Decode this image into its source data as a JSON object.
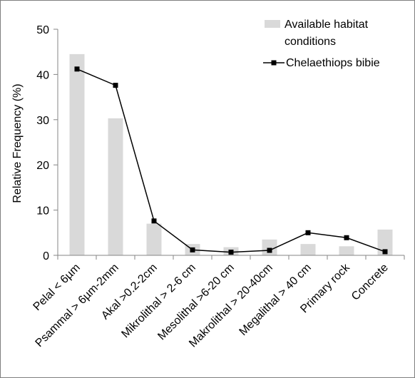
{
  "chart_data": {
    "type": "bar",
    "title": "",
    "xlabel": "",
    "ylabel": "Relative Frequency (%)",
    "ylim": [
      0,
      50
    ],
    "yticks": [
      0,
      10,
      20,
      30,
      40,
      50
    ],
    "grid": false,
    "legend_position": "top-right",
    "categories": [
      "Pelal < 6µm",
      "Psammal > 6µm-2mm",
      "Akal >0.2-2cm",
      "Mikrolithal > 2-6 cm",
      "Mesolithal >6-20 cm",
      "Makrolithal > 20-40cm",
      "Megalithal > 40 cm",
      "Primary rock",
      "Concrete"
    ],
    "series": [
      {
        "name": "Available habitat conditions",
        "type": "bar",
        "color": "#d9d9d9",
        "values": [
          44.5,
          30.3,
          7.0,
          2.5,
          1.8,
          3.5,
          2.5,
          2.0,
          5.7
        ]
      },
      {
        "name": "Chelaethiops bibie",
        "type": "line",
        "color": "#000000",
        "marker": "square",
        "values": [
          41.2,
          37.6,
          7.6,
          1.2,
          0.7,
          1.1,
          5.0,
          3.9,
          0.8
        ]
      }
    ]
  }
}
